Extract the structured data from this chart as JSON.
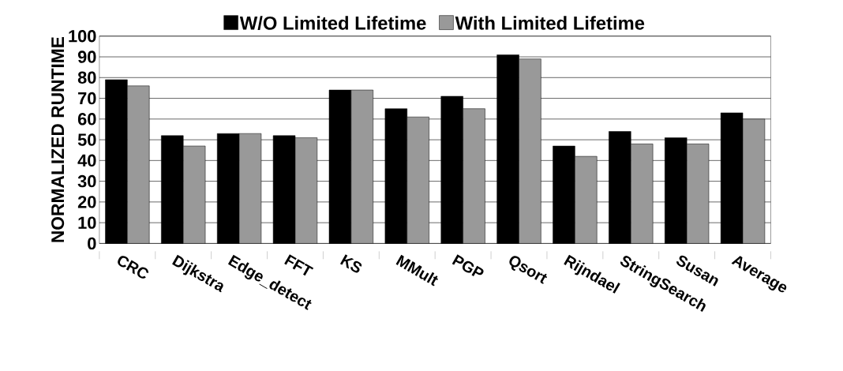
{
  "chart_data": {
    "type": "bar",
    "ylabel": "NORMALIZED RUNTIME",
    "categories": [
      "CRC",
      "Dijkstra",
      "Edge_detect",
      "FFT",
      "KS",
      "MMult",
      "PGP",
      "Qsort",
      "Rijndael",
      "StringSearch",
      "Susan",
      "Average"
    ],
    "series": [
      {
        "name": "W/O Limited Lifetime",
        "color": "#000000",
        "values": [
          79,
          52,
          53,
          52,
          74,
          65,
          71,
          91,
          47,
          54,
          51,
          63
        ]
      },
      {
        "name": "With Limited Lifetime",
        "color": "#999999",
        "values": [
          76,
          47,
          53,
          51,
          74,
          61,
          65,
          89,
          42,
          48,
          48,
          60
        ]
      }
    ],
    "ylim": [
      0,
      100
    ],
    "yticks": [
      0,
      10,
      20,
      30,
      40,
      50,
      60,
      70,
      80,
      90,
      100
    ],
    "grid": "y",
    "legend": "top"
  }
}
